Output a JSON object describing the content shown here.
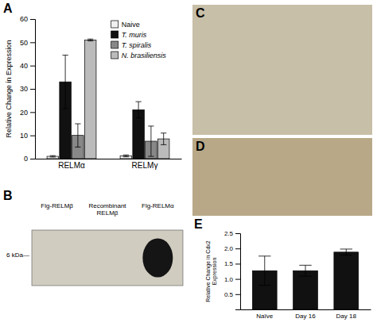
{
  "chart_data": [
    {
      "type": "bar",
      "title": "A",
      "categories": [
        "RELMα",
        "RELMγ"
      ],
      "series": [
        {
          "name": "Naive",
          "color": "#f0f0f0",
          "values": [
            1.0,
            1.2
          ],
          "errors": [
            0.3,
            0.4
          ]
        },
        {
          "name": "T. muris",
          "color": "#111111",
          "values": [
            33.0,
            21.0
          ],
          "errors": [
            11.5,
            3.5
          ]
        },
        {
          "name": "T. spiralis",
          "color": "#888888",
          "values": [
            10.0,
            7.5
          ],
          "errors": [
            5.0,
            6.5
          ]
        },
        {
          "name": "N. brasiliensis",
          "color": "#bbbbbb",
          "values": [
            51.0,
            8.5
          ],
          "errors": [
            0.4,
            2.5
          ]
        }
      ],
      "ylabel": "Relative Change in Expression",
      "ylim": [
        0,
        60
      ],
      "yticks": [
        0,
        10,
        20,
        30,
        40,
        50,
        60
      ],
      "legend": "upper right"
    },
    {
      "type": "image",
      "title": "B",
      "color": "#d0ccc0",
      "annotations": [
        "Flg-RELMβ",
        "Recombinant\nRELMβ",
        "Flg-RELMα",
        "6 kDa—"
      ]
    },
    {
      "type": "image",
      "title": "C",
      "color": "#c8bfa8"
    },
    {
      "type": "image",
      "title": "D",
      "color": "#b8a888"
    },
    {
      "type": "bar",
      "title": "E",
      "categories": [
        "Naïve",
        "Day 16",
        "Day 18"
      ],
      "values": [
        1.27,
        1.27,
        1.88
      ],
      "errors": [
        0.48,
        0.18,
        0.1
      ],
      "color": "#111111",
      "ylabel": "Relative Change in Cdx2\nExpression",
      "ylim": [
        0,
        2.5
      ],
      "yticks": [
        0.5,
        {
          "value": 1.0,
          "label": "1.0"
        },
        1.5,
        {
          "value": 2.0,
          "label": "2.0"
        },
        2.5
      ]
    }
  ]
}
